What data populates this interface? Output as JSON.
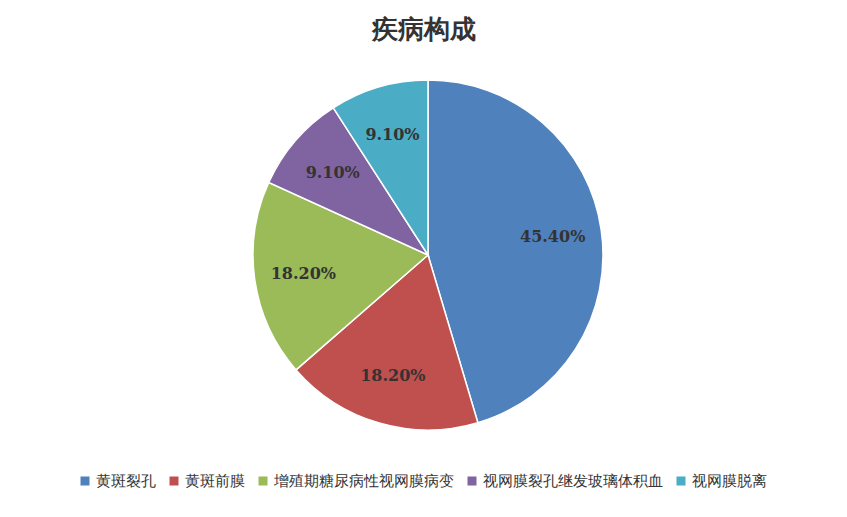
{
  "chart_data": {
    "type": "pie",
    "title": "疾病构成",
    "categories": [
      "黄斑裂孔",
      "黄斑前膜",
      "增殖期糖尿病性视网膜病变",
      "视网膜裂孔继发玻璃体积血",
      "视网膜脱离"
    ],
    "values": [
      45.4,
      18.2,
      18.2,
      9.1,
      9.1
    ],
    "value_labels": [
      "45.40%",
      "18.20%",
      "18.20%",
      "9.10%",
      "9.10%"
    ],
    "colors": [
      "#4f81bd",
      "#c0504d",
      "#9bbb59",
      "#8064a2",
      "#4bacc6"
    ],
    "data_labels": true,
    "legend": "bottom"
  }
}
